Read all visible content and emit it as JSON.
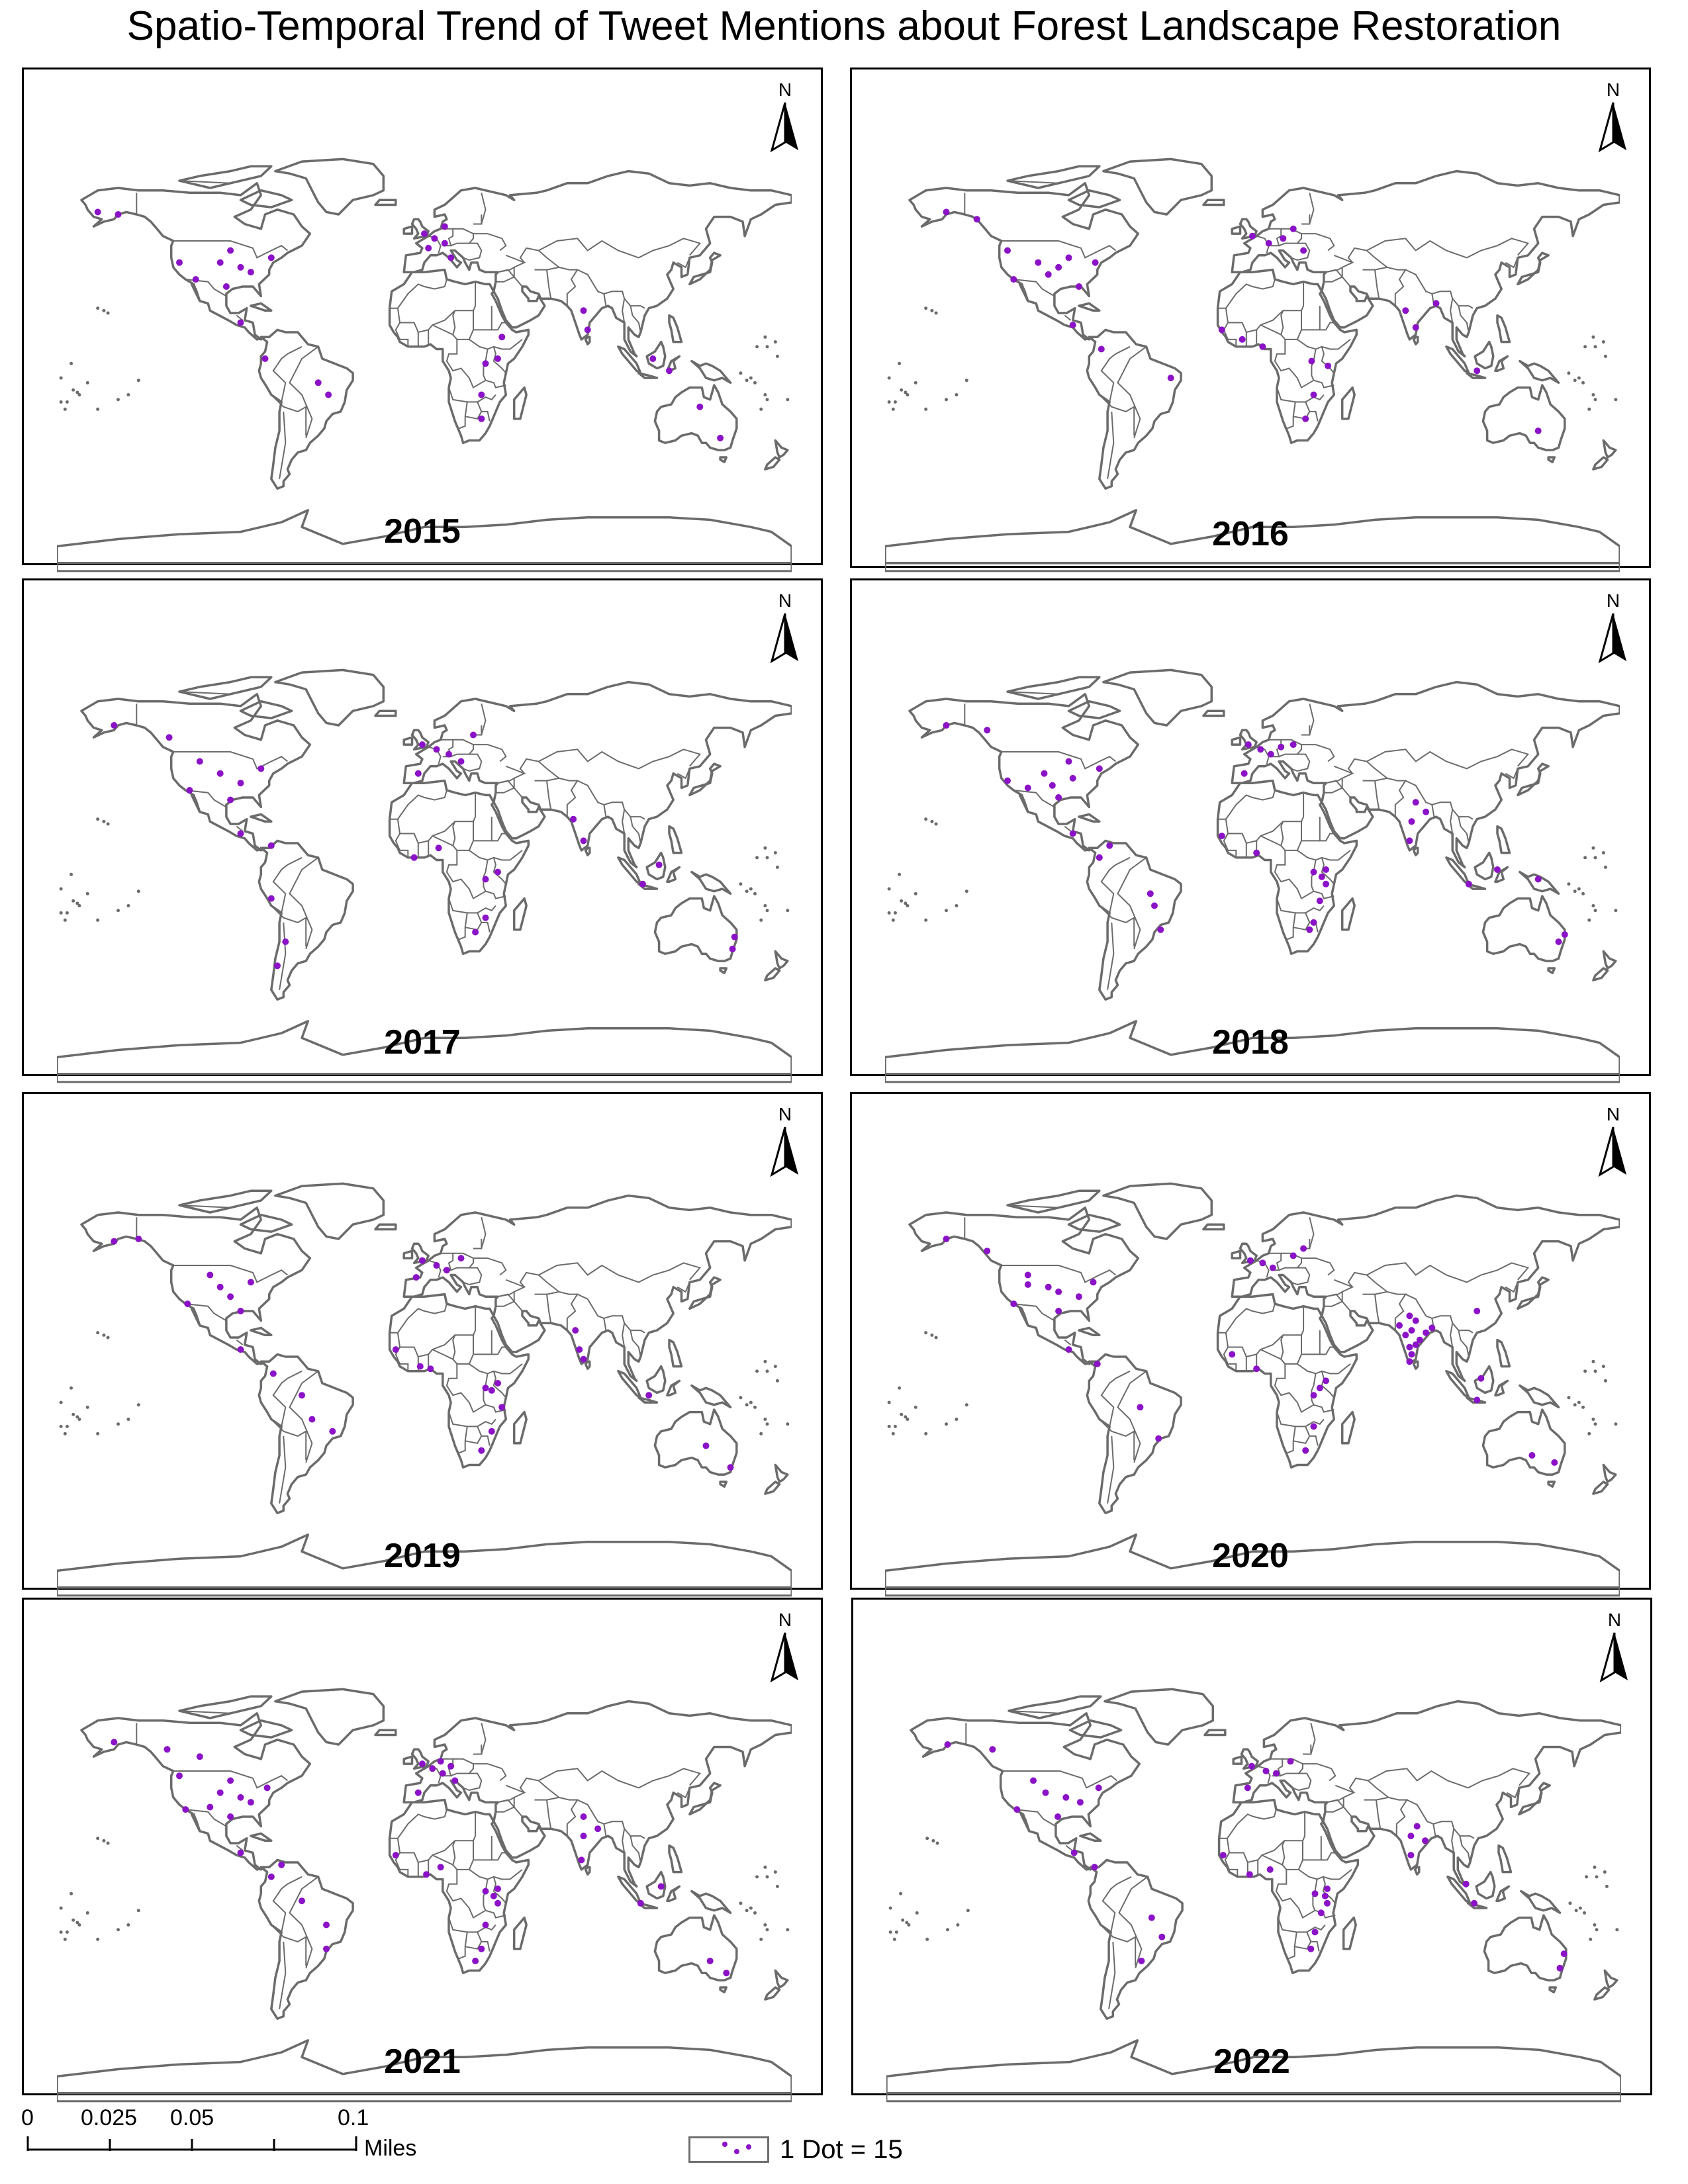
{
  "title": "Spatio-Temporal Trend of Tweet Mentions about Forest Landscape Restoration",
  "panels": [
    {
      "year": "2015",
      "lat_long_dots": [
        [
          60,
          -150
        ],
        [
          61,
          -160
        ],
        [
          40,
          -100
        ],
        [
          38,
          -90
        ],
        [
          36,
          -85
        ],
        [
          42,
          -75
        ],
        [
          40,
          -120
        ],
        [
          33,
          -112
        ],
        [
          30,
          -97
        ],
        [
          45,
          -95
        ],
        [
          52,
          0
        ],
        [
          50,
          5
        ],
        [
          48,
          10
        ],
        [
          46,
          2
        ],
        [
          55,
          10
        ],
        [
          42,
          13
        ],
        [
          15,
          -90
        ],
        [
          0,
          -78
        ],
        [
          -10,
          -52
        ],
        [
          -15,
          -47
        ],
        [
          0,
          36
        ],
        [
          -2,
          30
        ],
        [
          -15,
          28
        ],
        [
          -25,
          28
        ],
        [
          9,
          38
        ],
        [
          20,
          78
        ],
        [
          12,
          80
        ],
        [
          0,
          112
        ],
        [
          -5,
          120
        ],
        [
          -33,
          145
        ],
        [
          -20,
          135
        ]
      ]
    },
    {
      "year": "2016",
      "lat_long_dots": [
        [
          61,
          -150
        ],
        [
          58,
          -135
        ],
        [
          40,
          -105
        ],
        [
          38,
          -95
        ],
        [
          35,
          -100
        ],
        [
          42,
          -90
        ],
        [
          40,
          -77
        ],
        [
          33,
          -117
        ],
        [
          30,
          -85
        ],
        [
          45,
          -120
        ],
        [
          51,
          0
        ],
        [
          48,
          8
        ],
        [
          50,
          15
        ],
        [
          54,
          20
        ],
        [
          45,
          25
        ],
        [
          12,
          -15
        ],
        [
          8,
          -5
        ],
        [
          5,
          5
        ],
        [
          -3,
          37
        ],
        [
          -1,
          29
        ],
        [
          -15,
          30
        ],
        [
          -25,
          26
        ],
        [
          20,
          75
        ],
        [
          13,
          80
        ],
        [
          23,
          90
        ],
        [
          -5,
          110
        ],
        [
          -30,
          140
        ],
        [
          14,
          -88
        ],
        [
          4,
          -74
        ],
        [
          -8,
          -40
        ]
      ]
    },
    {
      "year": "2017",
      "lat_long_dots": [
        [
          60,
          -152
        ],
        [
          55,
          -125
        ],
        [
          40,
          -100
        ],
        [
          36,
          -90
        ],
        [
          42,
          -80
        ],
        [
          33,
          -115
        ],
        [
          29,
          -95
        ],
        [
          45,
          -110
        ],
        [
          52,
          -1
        ],
        [
          50,
          6
        ],
        [
          48,
          12
        ],
        [
          45,
          18
        ],
        [
          40,
          -3
        ],
        [
          56,
          24
        ],
        [
          15,
          -90
        ],
        [
          10,
          -75
        ],
        [
          -12,
          -75
        ],
        [
          -30,
          -68
        ],
        [
          -40,
          -72
        ],
        [
          5,
          -5
        ],
        [
          9,
          7
        ],
        [
          -1,
          36
        ],
        [
          -4,
          30
        ],
        [
          -20,
          30
        ],
        [
          -26,
          25
        ],
        [
          21,
          73
        ],
        [
          12,
          78
        ],
        [
          -6,
          107
        ],
        [
          2,
          115
        ],
        [
          -28,
          152
        ],
        [
          -33,
          151
        ]
      ]
    },
    {
      "year": "2018",
      "lat_long_dots": [
        [
          60,
          -150
        ],
        [
          58,
          -130
        ],
        [
          40,
          -102
        ],
        [
          38,
          -88
        ],
        [
          35,
          -98
        ],
        [
          42,
          -75
        ],
        [
          37,
          -120
        ],
        [
          30,
          -95
        ],
        [
          34,
          -110
        ],
        [
          45,
          -90
        ],
        [
          52,
          -2
        ],
        [
          50,
          4
        ],
        [
          48,
          9
        ],
        [
          51,
          14
        ],
        [
          52,
          20
        ],
        [
          40,
          -4
        ],
        [
          15,
          -88
        ],
        [
          10,
          -70
        ],
        [
          5,
          -75
        ],
        [
          -10,
          -50
        ],
        [
          -15,
          -48
        ],
        [
          -25,
          -45
        ],
        [
          14,
          -15
        ],
        [
          7,
          2
        ],
        [
          0,
          36
        ],
        [
          -1,
          30
        ],
        [
          -3,
          34
        ],
        [
          -6,
          36
        ],
        [
          -13,
          33
        ],
        [
          -22,
          30
        ],
        [
          -25,
          28
        ],
        [
          20,
          78
        ],
        [
          12,
          77
        ],
        [
          24,
          85
        ],
        [
          28,
          80
        ],
        [
          -6,
          106
        ],
        [
          0,
          120
        ],
        [
          -4,
          140
        ],
        [
          -27,
          153
        ],
        [
          -30,
          150
        ]
      ]
    },
    {
      "year": "2019",
      "lat_long_dots": [
        [
          59,
          -152
        ],
        [
          60,
          -140
        ],
        [
          40,
          -100
        ],
        [
          36,
          -95
        ],
        [
          42,
          -85
        ],
        [
          33,
          -116
        ],
        [
          30,
          -90
        ],
        [
          45,
          -105
        ],
        [
          51,
          -1
        ],
        [
          49,
          6
        ],
        [
          47,
          11
        ],
        [
          52,
          18
        ],
        [
          44,
          -4
        ],
        [
          14,
          -90
        ],
        [
          4,
          -74
        ],
        [
          -5,
          -60
        ],
        [
          -15,
          -55
        ],
        [
          -20,
          -45
        ],
        [
          14,
          -14
        ],
        [
          7,
          -2
        ],
        [
          6,
          3
        ],
        [
          0,
          36
        ],
        [
          -2,
          30
        ],
        [
          -3,
          33
        ],
        [
          -10,
          38
        ],
        [
          -20,
          33
        ],
        [
          -28,
          28
        ],
        [
          22,
          74
        ],
        [
          14,
          76
        ],
        [
          10,
          78
        ],
        [
          -5,
          110
        ],
        [
          -26,
          138
        ],
        [
          -35,
          150
        ]
      ]
    },
    {
      "year": "2020",
      "lat_long_dots": [
        [
          60,
          -150
        ],
        [
          55,
          -130
        ],
        [
          40,
          -100
        ],
        [
          38,
          -95
        ],
        [
          36,
          -85
        ],
        [
          42,
          -78
        ],
        [
          33,
          -117
        ],
        [
          30,
          -95
        ],
        [
          45,
          -110
        ],
        [
          41,
          -110
        ],
        [
          51,
          -1
        ],
        [
          50,
          5
        ],
        [
          48,
          10
        ],
        [
          53,
          20
        ],
        [
          56,
          25
        ],
        [
          14,
          -90
        ],
        [
          8,
          -76
        ],
        [
          -10,
          -55
        ],
        [
          -23,
          -46
        ],
        [
          12,
          -10
        ],
        [
          6,
          2
        ],
        [
          1,
          36
        ],
        [
          -2,
          33
        ],
        [
          -5,
          30
        ],
        [
          -18,
          30
        ],
        [
          -28,
          26
        ],
        [
          28,
          77
        ],
        [
          26,
          80
        ],
        [
          22,
          78
        ],
        [
          20,
          75
        ],
        [
          18,
          82
        ],
        [
          15,
          77
        ],
        [
          12,
          78
        ],
        [
          23,
          88
        ],
        [
          24,
          72
        ],
        [
          21,
          85
        ],
        [
          16,
          80
        ],
        [
          9,
          77
        ],
        [
          30,
          110
        ],
        [
          2,
          112
        ],
        [
          -7,
          110
        ],
        [
          -30,
          137
        ],
        [
          -33,
          148
        ]
      ]
    },
    {
      "year": "2021",
      "lat_long_dots": [
        [
          61,
          -152
        ],
        [
          58,
          -126
        ],
        [
          55,
          -110
        ],
        [
          40,
          -100
        ],
        [
          38,
          -90
        ],
        [
          36,
          -85
        ],
        [
          42,
          -77
        ],
        [
          33,
          -117
        ],
        [
          30,
          -95
        ],
        [
          45,
          -95
        ],
        [
          34,
          -105
        ],
        [
          47,
          -120
        ],
        [
          52,
          -1
        ],
        [
          50,
          4
        ],
        [
          48,
          9
        ],
        [
          51,
          13
        ],
        [
          53,
          8
        ],
        [
          45,
          15
        ],
        [
          40,
          -3
        ],
        [
          15,
          -90
        ],
        [
          10,
          -70
        ],
        [
          5,
          -75
        ],
        [
          -5,
          -60
        ],
        [
          -15,
          -48
        ],
        [
          -25,
          -48
        ],
        [
          14,
          -14
        ],
        [
          6,
          1
        ],
        [
          9,
          8
        ],
        [
          0,
          36
        ],
        [
          -1,
          30
        ],
        [
          -3,
          34
        ],
        [
          -6,
          36
        ],
        [
          -15,
          30
        ],
        [
          -25,
          28
        ],
        [
          -30,
          25
        ],
        [
          22,
          78
        ],
        [
          12,
          77
        ],
        [
          25,
          85
        ],
        [
          30,
          78
        ],
        [
          -6,
          106
        ],
        [
          1,
          116
        ],
        [
          -30,
          140
        ],
        [
          -35,
          148
        ]
      ]
    },
    {
      "year": "2022",
      "lat_long_dots": [
        [
          60,
          -150
        ],
        [
          58,
          -128
        ],
        [
          40,
          -102
        ],
        [
          38,
          -92
        ],
        [
          36,
          -85
        ],
        [
          42,
          -76
        ],
        [
          33,
          -116
        ],
        [
          30,
          -96
        ],
        [
          45,
          -108
        ],
        [
          51,
          -1
        ],
        [
          49,
          6
        ],
        [
          48,
          11
        ],
        [
          53,
          18
        ],
        [
          42,
          -3
        ],
        [
          15,
          -88
        ],
        [
          9,
          -78
        ],
        [
          -12,
          -50
        ],
        [
          -20,
          -45
        ],
        [
          -30,
          -55
        ],
        [
          14,
          -15
        ],
        [
          6,
          -2
        ],
        [
          8,
          8
        ],
        [
          0,
          36
        ],
        [
          -2,
          30
        ],
        [
          -3,
          35
        ],
        [
          -6,
          36
        ],
        [
          -10,
          33
        ],
        [
          -18,
          30
        ],
        [
          -25,
          28
        ],
        [
          22,
          77
        ],
        [
          14,
          77
        ],
        [
          20,
          84
        ],
        [
          26,
          80
        ],
        [
          -6,
          108
        ],
        [
          2,
          104
        ],
        [
          -27,
          152
        ],
        [
          -33,
          150
        ]
      ]
    }
  ],
  "north_label": "N",
  "scale_bar": {
    "ticks": [
      "0",
      "0.025",
      "0.05",
      "0.1"
    ],
    "unit": "Miles"
  },
  "legend": {
    "label": "1 Dot = 15"
  },
  "colors": {
    "dots": "#8b12c7",
    "land_outline": "#6b6b6b",
    "frame": "#000000"
  },
  "icons": {
    "north": "north-arrow-icon"
  }
}
